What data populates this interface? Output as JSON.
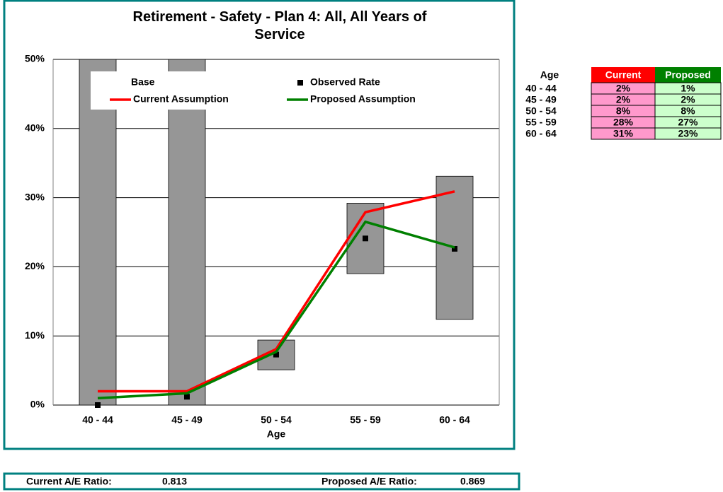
{
  "chart_data": {
    "type": "combo",
    "title": "Retirement - Safety - Plan 4: All, All Years of Service",
    "x_label": "Age",
    "categories": [
      "40 - 44",
      "45 - 49",
      "50 - 54",
      "55 - 59",
      "60 - 64"
    ],
    "series": [
      {
        "name": "Base",
        "kind": "range",
        "color": "#969696",
        "low": [
          0,
          0,
          5.1,
          19.0,
          12.4
        ],
        "high": [
          50,
          50,
          9.4,
          29.2,
          33.1
        ]
      },
      {
        "name": "Observed Rate",
        "kind": "point",
        "color": "#000000",
        "values": [
          0,
          1.2,
          7.3,
          24.1,
          22.6
        ]
      },
      {
        "name": "Current Assumption",
        "kind": "line",
        "color": "#ff0000",
        "values": [
          2.0,
          2.0,
          8.1,
          27.9,
          30.9
        ]
      },
      {
        "name": "Proposed Assumption",
        "kind": "line",
        "color": "#008000",
        "values": [
          1.0,
          1.7,
          7.7,
          26.5,
          22.8
        ]
      }
    ],
    "ylim": [
      0,
      50
    ],
    "yticks": [
      {
        "value": 0,
        "label": "0%"
      },
      {
        "value": 10,
        "label": "10%"
      },
      {
        "value": 20,
        "label": "20%"
      },
      {
        "value": 30,
        "label": "30%"
      },
      {
        "value": 40,
        "label": "40%"
      },
      {
        "value": 50,
        "label": "50%"
      }
    ],
    "grid": true
  },
  "table": {
    "header": [
      "Age",
      "Current",
      "Proposed"
    ],
    "rows": [
      [
        "40 - 44",
        "2%",
        "1%"
      ],
      [
        "45 - 49",
        "2%",
        "2%"
      ],
      [
        "50 - 54",
        "8%",
        "8%"
      ],
      [
        "55 - 59",
        "28%",
        "27%"
      ],
      [
        "60 - 64",
        "31%",
        "23%"
      ]
    ]
  },
  "footer": {
    "current_label": "Current A/E Ratio:",
    "current_value": "0.813",
    "proposed_label": "Proposed A/E Ratio:",
    "proposed_value": "0.869"
  }
}
